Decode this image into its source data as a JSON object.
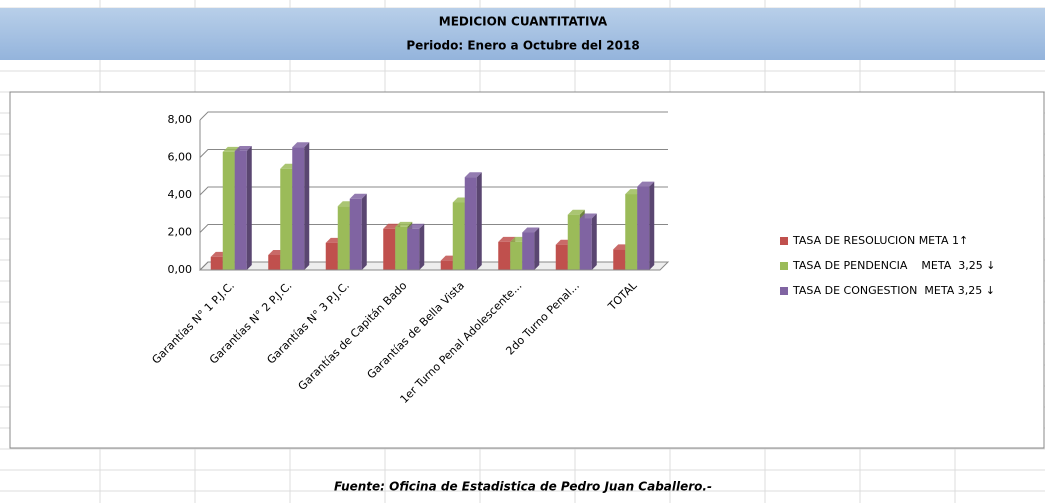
{
  "header": {
    "title": "MEDICION CUANTITATIVA",
    "subtitle": "Periodo: Enero a Octubre del 2018"
  },
  "chart_data": {
    "type": "bar",
    "categories": [
      "Garantías N° 1 P.J.C.",
      "Garantías N° 2 P.J.C.",
      "Garantías N° 3 P.J.C.",
      "Garantías de Capitán Bado",
      "Garantías de Bella Vista",
      "1er Turno Penal Adolescente...",
      "2do Turno Penal...",
      "TOTAL"
    ],
    "series": [
      {
        "name": "TASA DE RESOLUCION META 1↑",
        "color": "#c0504d",
        "values": [
          0.7,
          0.8,
          1.45,
          2.2,
          0.5,
          1.5,
          1.35,
          1.1
        ]
      },
      {
        "name": "TASA DE PENDENCIA    META  3,25 ↓",
        "color": "#9bbb59",
        "values": [
          6.3,
          5.4,
          3.4,
          2.3,
          3.6,
          1.5,
          2.95,
          4.05
        ]
      },
      {
        "name": "TASA DE CONGESTION  META 3,25 ↓",
        "color": "#8064a2",
        "values": [
          6.35,
          6.55,
          3.8,
          2.2,
          4.95,
          2.0,
          2.75,
          4.45
        ]
      }
    ],
    "ylim": [
      0,
      8
    ],
    "yticks": [
      {
        "value": 0,
        "label": "0,00"
      },
      {
        "value": 2,
        "label": "2,00"
      },
      {
        "value": 4,
        "label": "4,00"
      },
      {
        "value": 6,
        "label": "6,00"
      },
      {
        "value": 8,
        "label": "8,00"
      }
    ],
    "grid": true,
    "legend": "right"
  },
  "footer": "Fuente: Oficina de Estadistica de Pedro Juan Caballero.-"
}
